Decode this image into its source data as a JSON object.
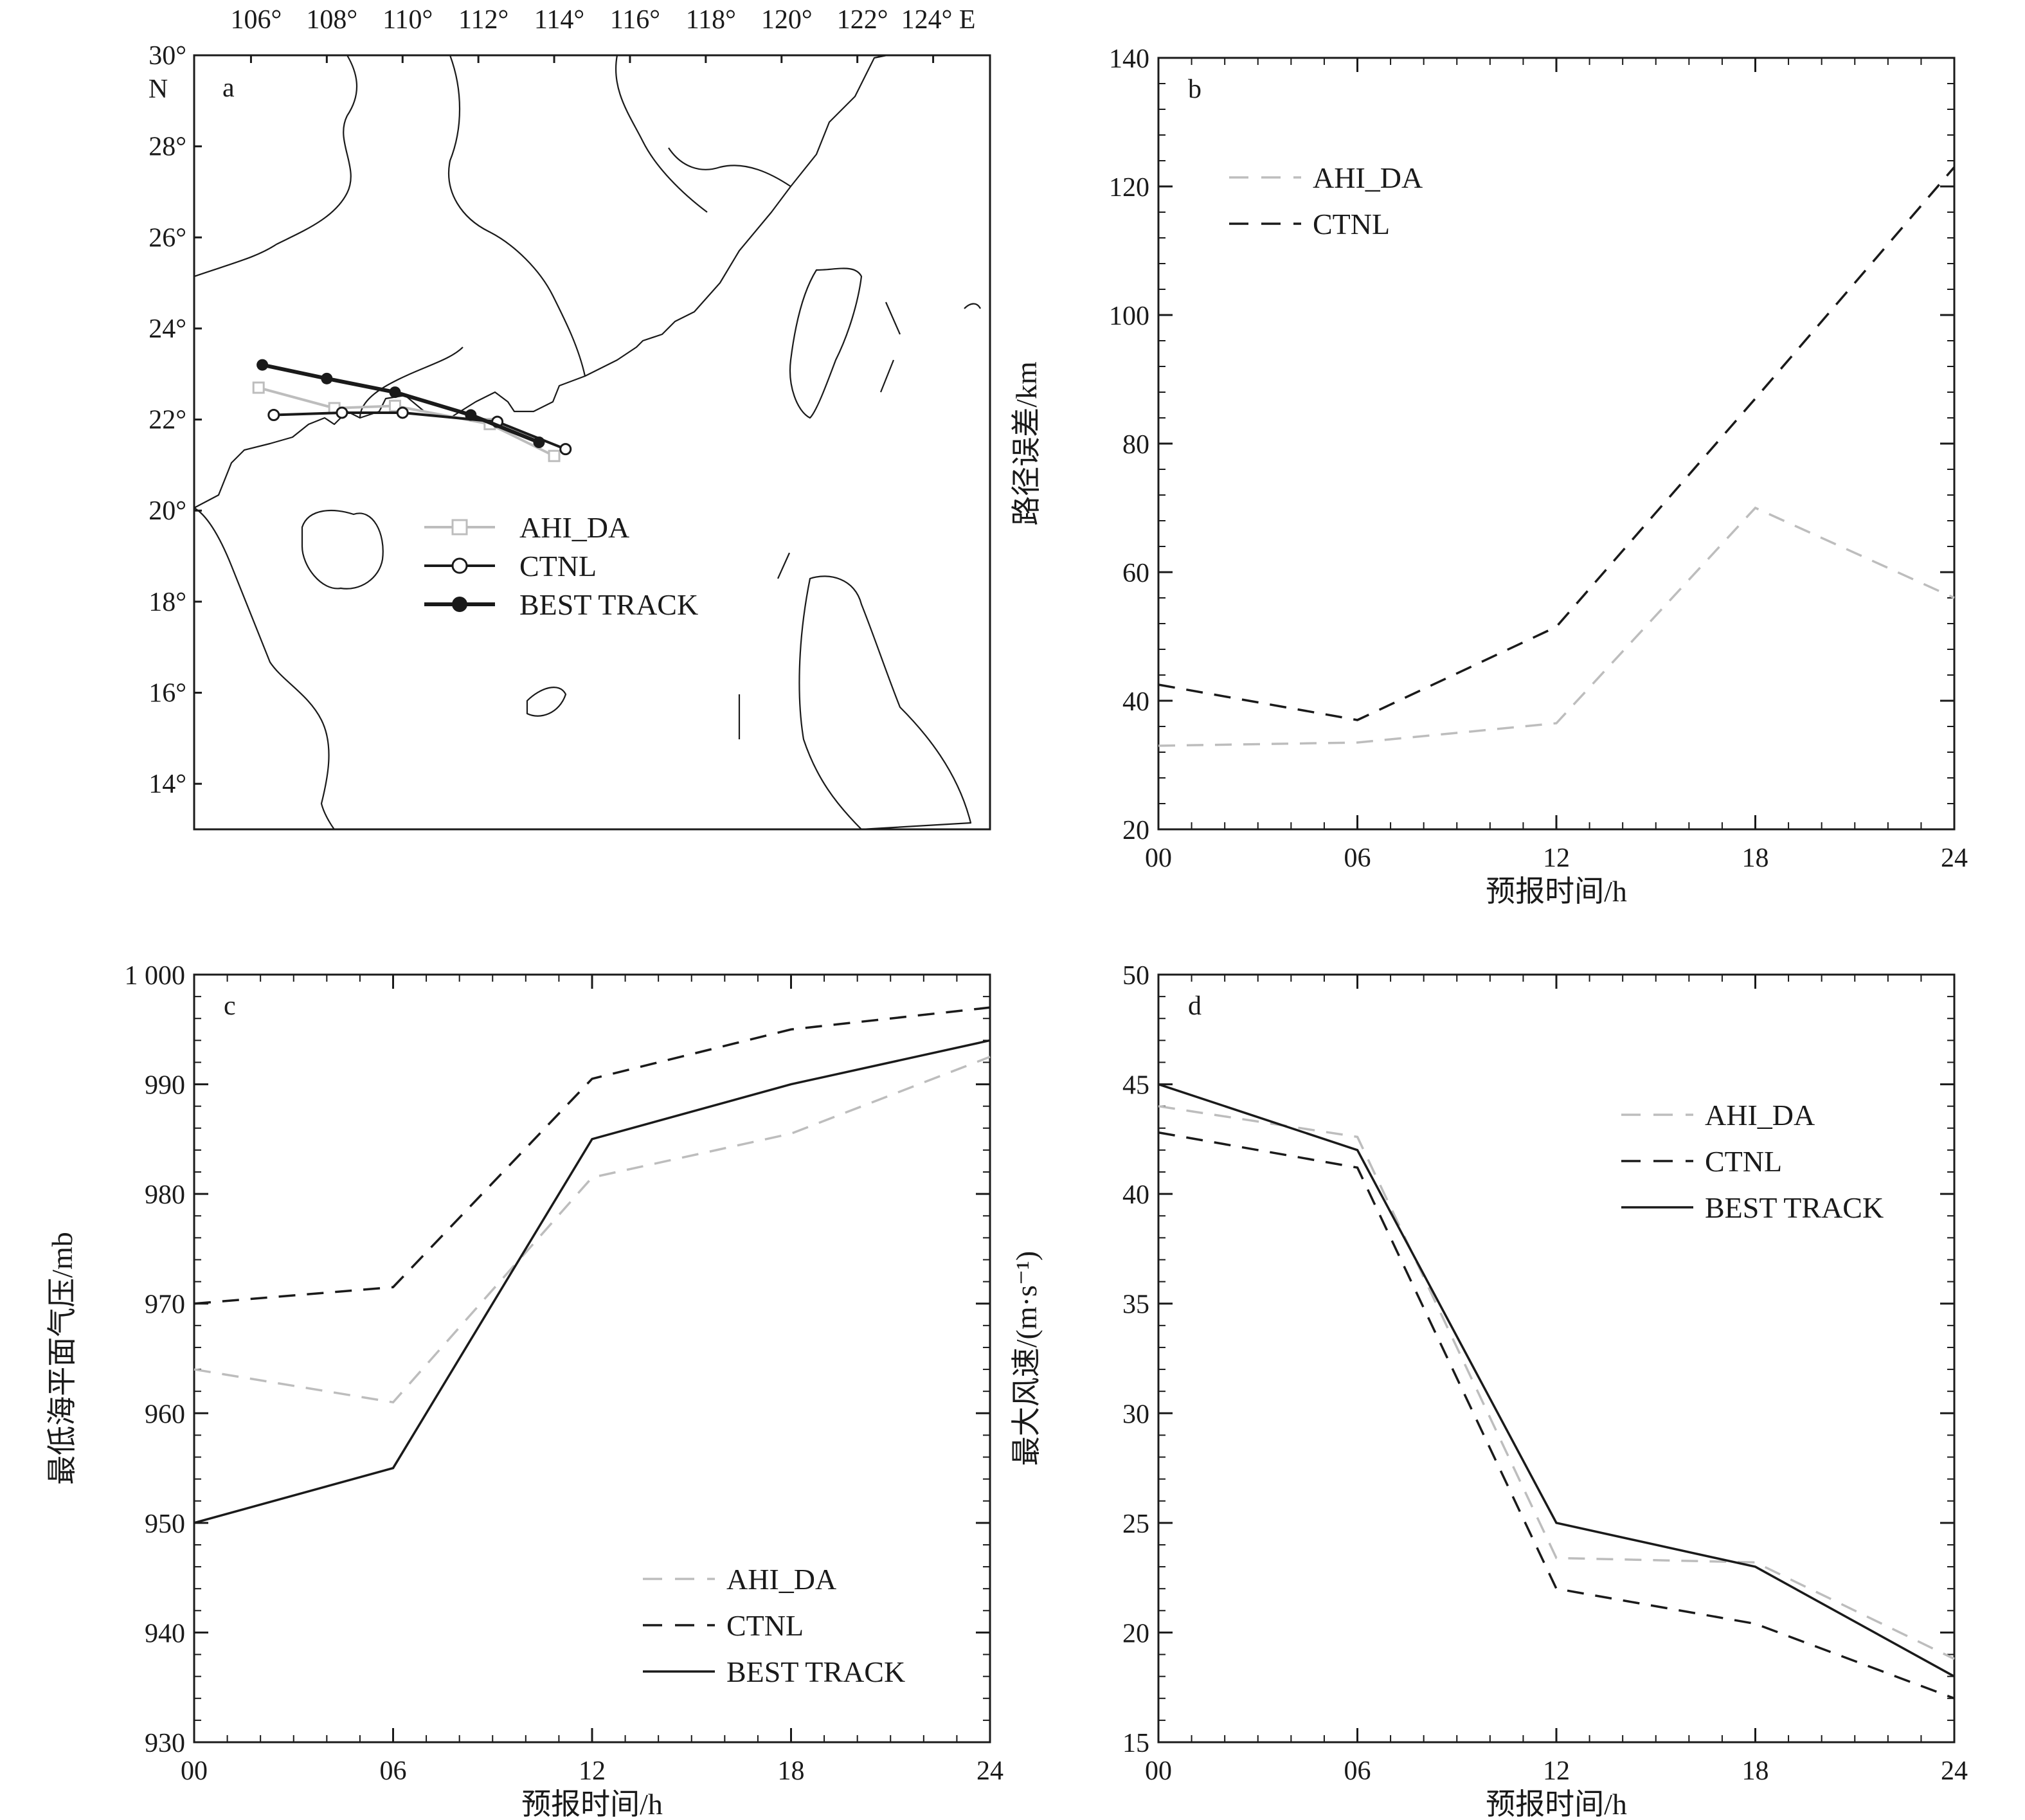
{
  "colors": {
    "ahi_da": "#bdbdbd",
    "ctnl": "#1a1a1a",
    "best_track": "#1a1a1a",
    "axes": "#1a1a1a"
  },
  "chart_data": [
    {
      "panel": "a",
      "type": "map",
      "x_tick_labels": [
        "106°",
        "108°",
        "110°",
        "112°",
        "114°",
        "116°",
        "118°",
        "120°",
        "122°",
        "124° E"
      ],
      "y_tick_labels": [
        "30°",
        "28°",
        "26°",
        "24°",
        "22°",
        "20°",
        "18°",
        "16°",
        "14°"
      ],
      "y_unit_label": "N",
      "xlim": [
        104.5,
        125.5
      ],
      "ylim": [
        13,
        30
      ],
      "series": [
        {
          "name": "AHI_DA",
          "marker": "open-square",
          "line": "solid",
          "color": "#bdbdbd",
          "points": [
            [
              106.2,
              22.7
            ],
            [
              108.2,
              22.25
            ],
            [
              109.8,
              22.3
            ],
            [
              112.3,
              21.9
            ],
            [
              114.0,
              21.2
            ]
          ]
        },
        {
          "name": "CTNL",
          "marker": "open-circle",
          "line": "solid",
          "color": "#1a1a1a",
          "points": [
            [
              106.6,
              22.1
            ],
            [
              108.4,
              22.15
            ],
            [
              110.0,
              22.15
            ],
            [
              112.5,
              21.95
            ],
            [
              114.3,
              21.35
            ]
          ]
        },
        {
          "name": "BEST TRACK",
          "marker": "filled-circle",
          "line": "solid",
          "color": "#1a1a1a",
          "points": [
            [
              106.3,
              23.2
            ],
            [
              108.0,
              22.9
            ],
            [
              109.8,
              22.6
            ],
            [
              111.8,
              22.1
            ],
            [
              113.6,
              21.5
            ]
          ]
        }
      ],
      "legend": "center"
    },
    {
      "panel": "b",
      "type": "line",
      "categories": [
        "00",
        "06",
        "12",
        "18",
        "24"
      ],
      "xlabel": "预报时间/h",
      "ylabel": "路径误差/km",
      "ylim": [
        20,
        140
      ],
      "yticks": [
        20,
        40,
        60,
        80,
        100,
        120,
        140
      ],
      "series": [
        {
          "name": "AHI_DA",
          "style": "dashed",
          "color": "#bdbdbd",
          "values": [
            33,
            33.5,
            36.5,
            70,
            56
          ]
        },
        {
          "name": "CTNL",
          "style": "dashed",
          "color": "#1a1a1a",
          "values": [
            42.5,
            37,
            51.5,
            87,
            123
          ]
        }
      ],
      "legend": "top-left"
    },
    {
      "panel": "c",
      "type": "line",
      "categories": [
        "00",
        "06",
        "12",
        "18",
        "24"
      ],
      "xlabel": "预报时间/h",
      "ylabel": "最低海平面气压/mb",
      "ylim": [
        930,
        1000
      ],
      "yticks": [
        930,
        940,
        950,
        960,
        970,
        980,
        990,
        1000
      ],
      "ytick_labels": [
        "930",
        "940",
        "950",
        "960",
        "970",
        "980",
        "990",
        "1 000"
      ],
      "series": [
        {
          "name": "AHI_DA",
          "style": "dashed",
          "color": "#bdbdbd",
          "values": [
            964,
            961,
            981.5,
            985.5,
            992.5
          ]
        },
        {
          "name": "CTNL",
          "style": "dashed",
          "color": "#1a1a1a",
          "values": [
            970,
            971.5,
            990.5,
            995,
            997
          ]
        },
        {
          "name": "BEST TRACK",
          "style": "solid",
          "color": "#1a1a1a",
          "values": [
            950,
            955,
            985,
            990,
            994
          ]
        }
      ],
      "legend": "bottom-right"
    },
    {
      "panel": "d",
      "type": "line",
      "categories": [
        "00",
        "06",
        "12",
        "18",
        "24"
      ],
      "xlabel": "预报时间/h",
      "ylabel": "最大风速/(m·s⁻¹)",
      "ylim": [
        15,
        50
      ],
      "yticks": [
        15,
        20,
        25,
        30,
        35,
        40,
        45,
        50
      ],
      "series": [
        {
          "name": "AHI_DA",
          "style": "dashed",
          "color": "#bdbdbd",
          "values": [
            44,
            42.6,
            23.4,
            23.2,
            18.8
          ]
        },
        {
          "name": "CTNL",
          "style": "dashed",
          "color": "#1a1a1a",
          "values": [
            42.8,
            41.2,
            22,
            20.4,
            17
          ]
        },
        {
          "name": "BEST TRACK",
          "style": "solid",
          "color": "#1a1a1a",
          "values": [
            45,
            42,
            25,
            23,
            18
          ]
        }
      ],
      "legend": "top-right"
    }
  ]
}
